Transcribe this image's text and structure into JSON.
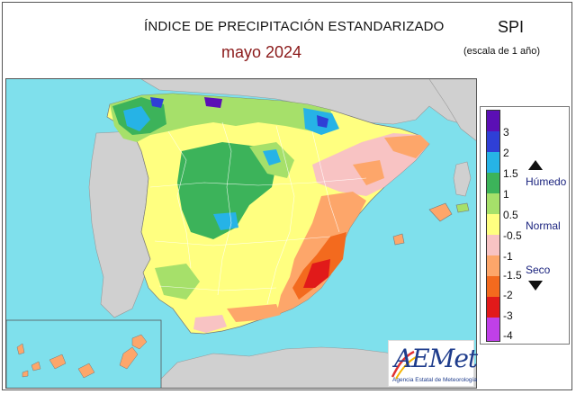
{
  "title": "ÍNDICE DE PRECIPITACIÓN ESTANDARIZADO",
  "subtitle": "mayo  2024",
  "index_name": "SPI",
  "index_scale": "(escala de 1 año)",
  "legend": {
    "ticks": [
      "3",
      "2",
      "1.5",
      "1",
      "0.5",
      "-0.5",
      "-1",
      "-1.5",
      "-2",
      "-3",
      "-4"
    ],
    "categories": {
      "wet": "Húmedo",
      "normal": "Normal",
      "dry": "Seco"
    },
    "colors": [
      "#5b0fb5",
      "#2f3fd6",
      "#26b3e6",
      "#3cb35a",
      "#a6e06a",
      "#ffff80",
      "#f8c3c3",
      "#fda66a",
      "#f36a1e",
      "#e11a1a",
      "#c040e8"
    ]
  },
  "logo": {
    "name": "AEMet",
    "tagline": "Agencia Estatal de Meteorología"
  },
  "colors": {
    "sea": "#7fe0ec",
    "land_outside": "#d0d0d0",
    "title_accent": "#8b1a1a"
  }
}
